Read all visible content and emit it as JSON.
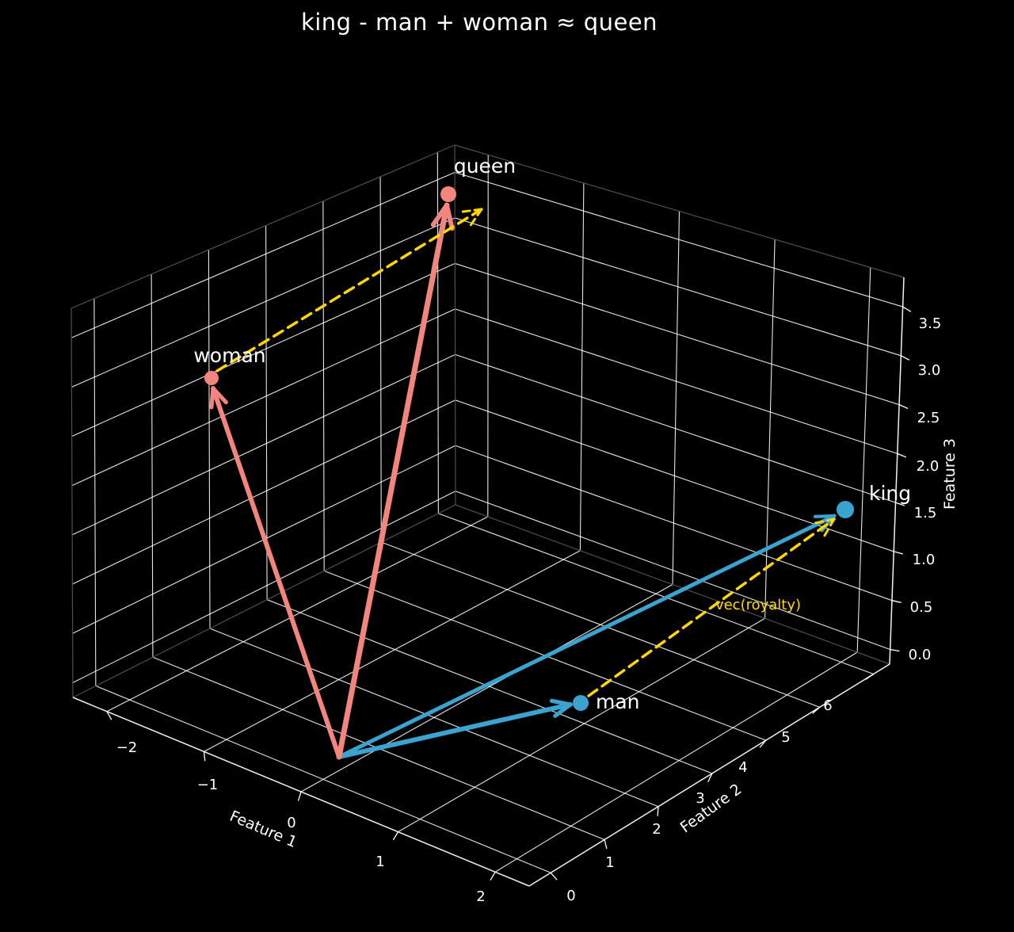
{
  "title": "king - man + woman ≈ queen",
  "colors": {
    "background": "#000000",
    "grid": "#ffffff",
    "pane_edge": "#4f4f4f",
    "text": "#ffffff",
    "male_vector": "#3AA3CF",
    "female_vector": "#F2857D",
    "royalty_vector": "#FFD700"
  },
  "chart_data": {
    "type": "scatter",
    "projection": "3d",
    "title": "king - man + woman ≈ queen",
    "background": "#000000",
    "grid": true,
    "points": [
      {
        "label": "king",
        "x": 1.5,
        "y": 6.0,
        "z": 1.5,
        "color": "#3AA3CF"
      },
      {
        "label": "man",
        "x": 1.0,
        "y": 3.0,
        "z": 0.5,
        "color": "#3AA3CF"
      },
      {
        "label": "woman",
        "x": -1.5,
        "y": 1.0,
        "z": 2.5,
        "color": "#F2857D"
      },
      {
        "label": "queen",
        "x": -1.0,
        "y": 4.0,
        "z": 3.5,
        "color": "#F2857D"
      }
    ],
    "vectors": [
      {
        "name": "king",
        "from": "origin",
        "to": "king",
        "style": "solid",
        "color": "#3AA3CF"
      },
      {
        "name": "man",
        "from": "origin",
        "to": "man",
        "style": "solid",
        "color": "#3AA3CF"
      },
      {
        "name": "woman",
        "from": "origin",
        "to": "woman",
        "style": "solid",
        "color": "#F2857D"
      },
      {
        "name": "queen",
        "from": "origin",
        "to": "queen",
        "style": "solid",
        "color": "#F2857D"
      },
      {
        "name": "royalty-from-man",
        "from": "man",
        "to": "king",
        "style": "dashed",
        "color": "#FFD700",
        "label": "vec(royalty)"
      },
      {
        "name": "royalty-from-woman",
        "from": "woman",
        "to": "woman + (king - man)",
        "style": "dashed",
        "color": "#FFD700",
        "label": ""
      }
    ],
    "annotation": "vec(royalty)",
    "axes": {
      "x": {
        "label": "Feature 1",
        "ticks": [
          "−2",
          "−1",
          "0",
          "1",
          "2"
        ],
        "range": [
          -2.35,
          2.35
        ]
      },
      "y": {
        "label": "Feature 2",
        "ticks": [
          "0",
          "1",
          "2",
          "3",
          "4",
          "5",
          "6"
        ],
        "range": [
          -0.4,
          6.3
        ]
      },
      "z": {
        "label": "Feature 3",
        "ticks": [
          "0.0",
          "0.5",
          "1.0",
          "1.5",
          "2.0",
          "2.5",
          "3.0",
          "3.5"
        ],
        "range": [
          -0.15,
          3.8
        ]
      }
    }
  }
}
